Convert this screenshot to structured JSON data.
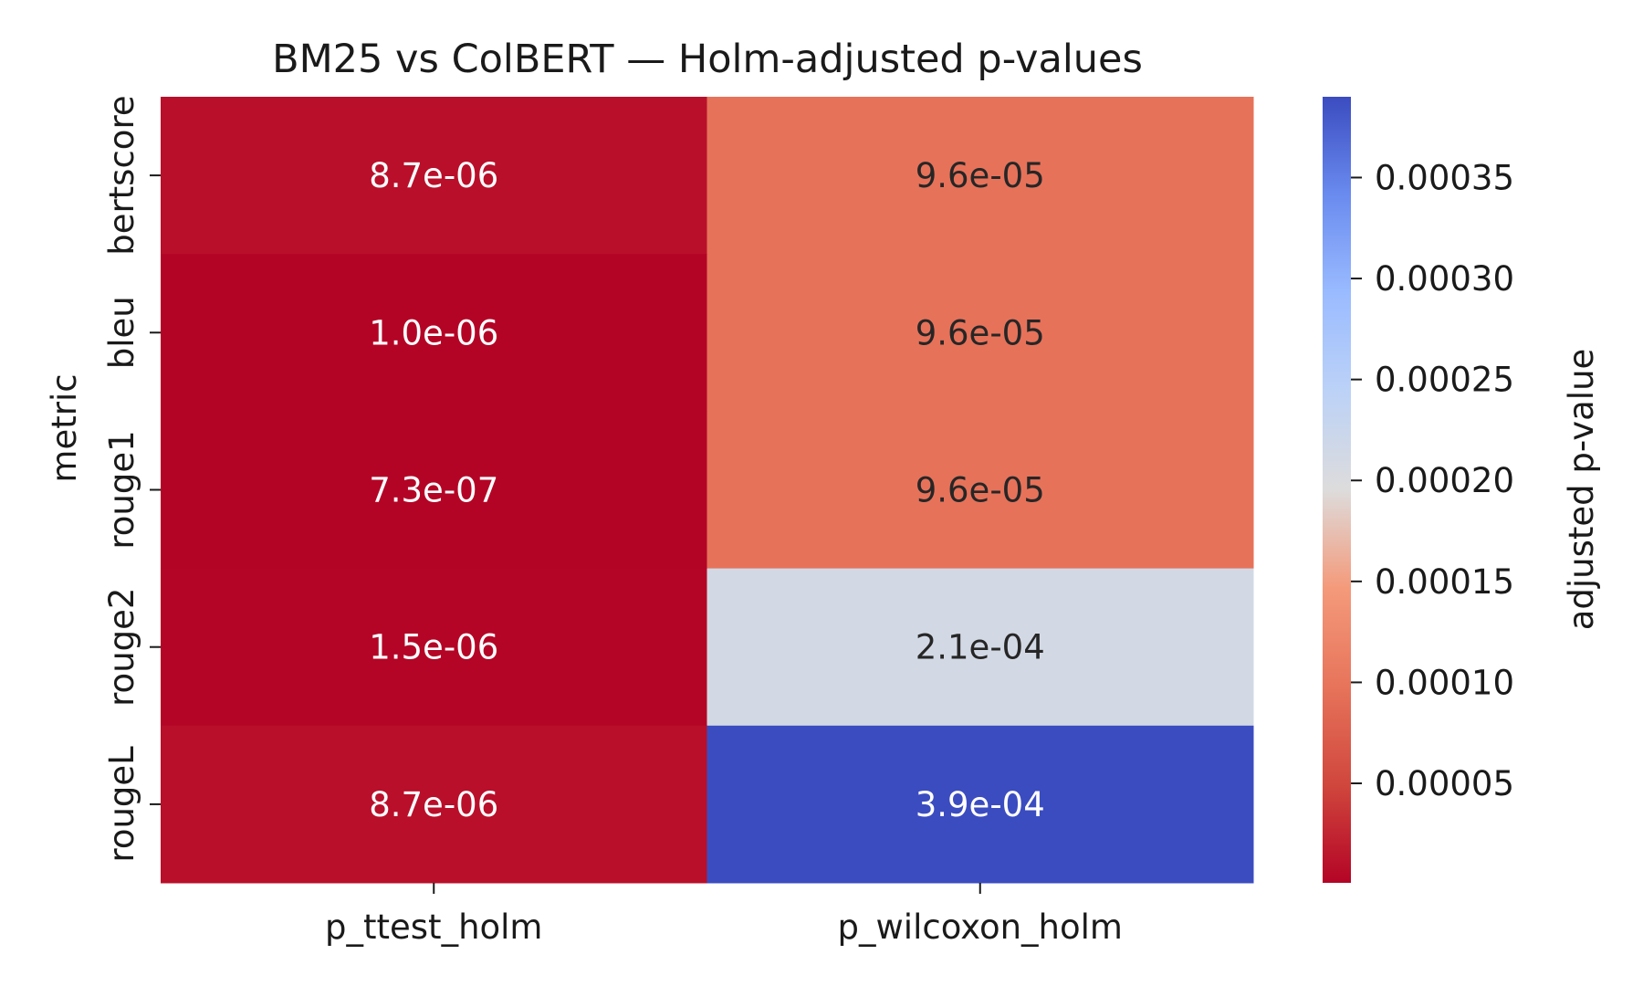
{
  "chart_data": {
    "type": "heatmap",
    "title": "BM25 vs ColBERT — Holm-adjusted p-values",
    "xlabel": "",
    "ylabel": "metric",
    "x_categories": [
      "p_ttest_holm",
      "p_wilcoxon_holm"
    ],
    "y_categories": [
      "bertscore",
      "bleu",
      "rouge1",
      "rouge2",
      "rougeL"
    ],
    "values": [
      [
        8.7e-06,
        9.6e-05
      ],
      [
        1e-06,
        9.6e-05
      ],
      [
        7.3e-07,
        9.6e-05
      ],
      [
        1.5e-06,
        0.00021
      ],
      [
        8.7e-06,
        0.00039
      ]
    ],
    "cell_labels": [
      [
        "8.7e-06",
        "9.6e-05"
      ],
      [
        "1.0e-06",
        "9.6e-05"
      ],
      [
        "7.3e-07",
        "9.6e-05"
      ],
      [
        "1.5e-06",
        "2.1e-04"
      ],
      [
        "8.7e-06",
        "3.9e-04"
      ]
    ],
    "colormap": "coolwarm_r",
    "colorbar": {
      "label": "adjusted p-value",
      "range": [
        7.3e-07,
        0.00039
      ],
      "ticks": [
        5e-05,
        0.0001,
        0.00015,
        0.0002,
        0.00025,
        0.0003,
        0.00035
      ],
      "tick_labels": [
        "0.00005",
        "0.00010",
        "0.00015",
        "0.00020",
        "0.00025",
        "0.00030",
        "0.00035"
      ]
    },
    "grid": false
  }
}
